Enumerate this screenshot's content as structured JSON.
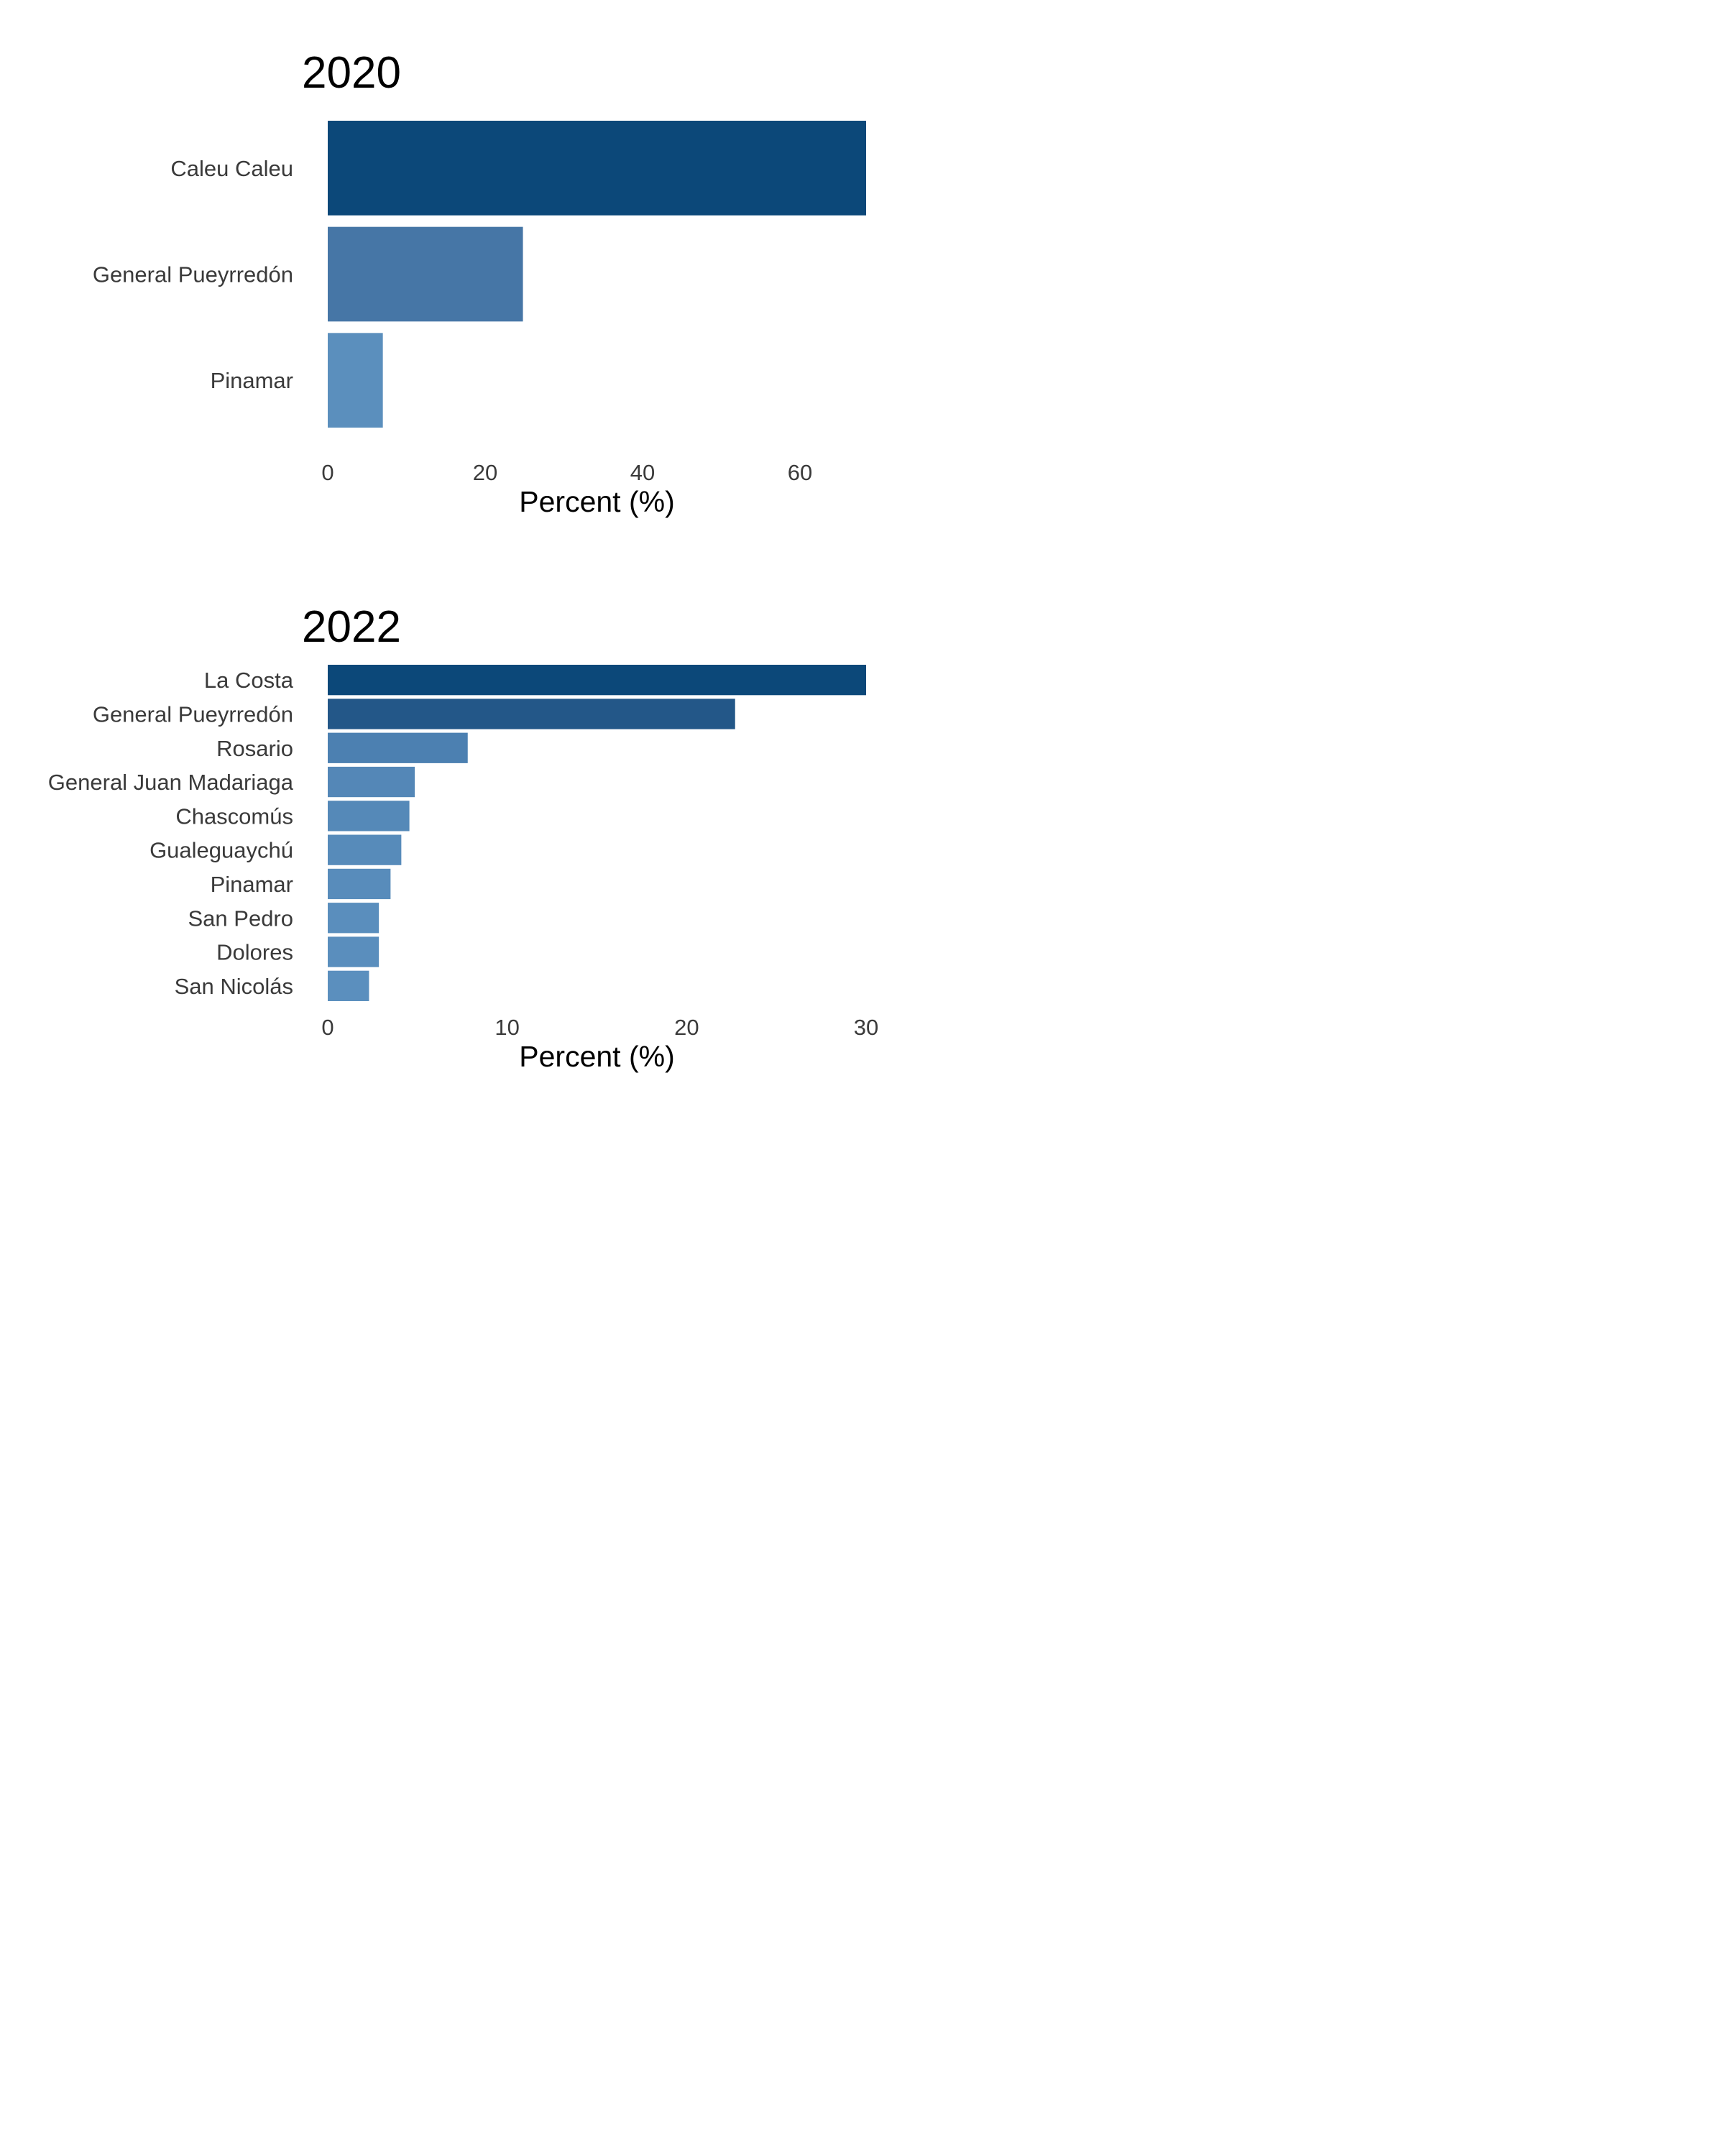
{
  "chart_data": [
    {
      "type": "bar",
      "orientation": "horizontal",
      "title": "2020",
      "xlabel": "Percent (%)",
      "ylabel": "",
      "categories": [
        "Caleu Caleu",
        "General Pueyrredón",
        "Pinamar"
      ],
      "values": [
        68.4,
        24.8,
        7.0
      ],
      "xlim": [
        0,
        68.4
      ],
      "xticks": [
        "0",
        "20",
        "40",
        "60"
      ],
      "colors": [
        "#0c4879",
        "#4676a6",
        "#5b8fbd"
      ],
      "grid": false
    },
    {
      "type": "bar",
      "orientation": "horizontal",
      "title": "2022",
      "xlabel": "Percent (%)",
      "ylabel": "",
      "categories": [
        "La Costa",
        "General Pueyrredón",
        "Rosario",
        "General Juan Madariaga",
        "Chascomús",
        "Gualeguaychú",
        "Pinamar",
        "San Pedro",
        "Dolores",
        "San Nicolás"
      ],
      "values": [
        30.0,
        22.7,
        7.8,
        4.85,
        4.55,
        4.1,
        3.5,
        2.85,
        2.85,
        2.3
      ],
      "xlim": [
        0,
        30
      ],
      "xticks": [
        "0",
        "10",
        "20",
        "30"
      ],
      "colors": [
        "#0c4879",
        "#235788",
        "#4c80b1",
        "#5487b7",
        "#5589b8",
        "#578bba",
        "#588cbb",
        "#5a8ebd",
        "#5a8ebd",
        "#5b8fbe"
      ],
      "grid": false
    }
  ]
}
